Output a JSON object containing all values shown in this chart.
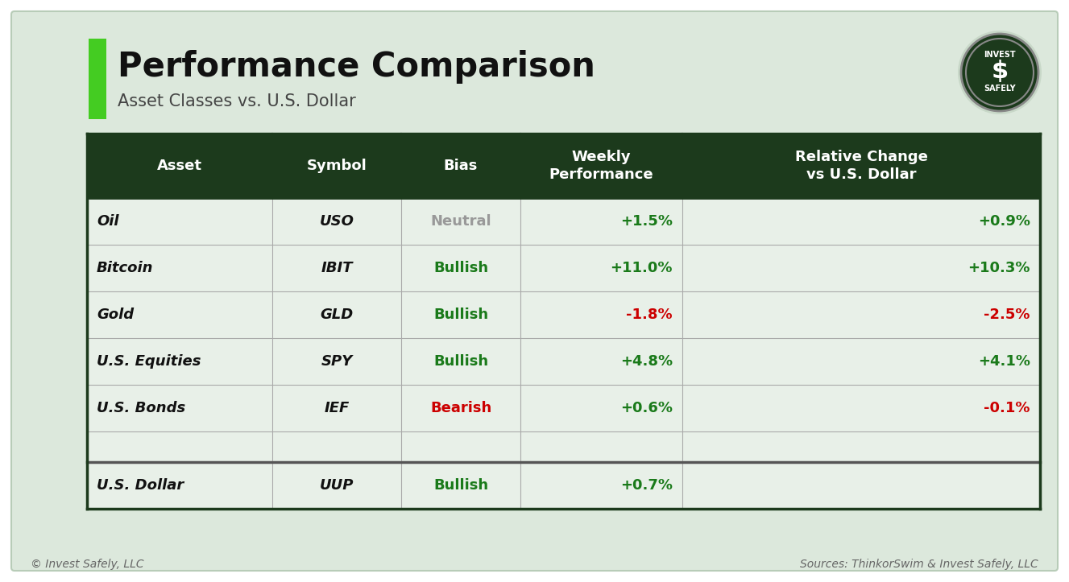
{
  "title": "Performance Comparison",
  "subtitle": "Asset Classes vs. U.S. Dollar",
  "bg_color": "#dce8dc",
  "outer_bg": "#ffffff",
  "table_header_bg": "#1c3a1c",
  "table_header_fg": "#ffffff",
  "table_row_bg": "#e8f0e8",
  "green_bar_color": "#44cc22",
  "col_headers": [
    "Asset",
    "Symbol",
    "Bias",
    "Weekly\nPerformance",
    "Relative Change\nvs U.S. Dollar"
  ],
  "rows": [
    {
      "asset": "Oil",
      "symbol": "USO",
      "bias": "Neutral",
      "bias_color": "#999999",
      "weekly": "+1.5%",
      "weekly_color": "#1a7a1a",
      "relative": "+0.9%",
      "relative_color": "#1a7a1a"
    },
    {
      "asset": "Bitcoin",
      "symbol": "IBIT",
      "bias": "Bullish",
      "bias_color": "#1a7a1a",
      "weekly": "+11.0%",
      "weekly_color": "#1a7a1a",
      "relative": "+10.3%",
      "relative_color": "#1a7a1a"
    },
    {
      "asset": "Gold",
      "symbol": "GLD",
      "bias": "Bullish",
      "bias_color": "#1a7a1a",
      "weekly": "-1.8%",
      "weekly_color": "#cc0000",
      "relative": "-2.5%",
      "relative_color": "#cc0000"
    },
    {
      "asset": "U.S. Equities",
      "symbol": "SPY",
      "bias": "Bullish",
      "bias_color": "#1a7a1a",
      "weekly": "+4.8%",
      "weekly_color": "#1a7a1a",
      "relative": "+4.1%",
      "relative_color": "#1a7a1a"
    },
    {
      "asset": "U.S. Bonds",
      "symbol": "IEF",
      "bias": "Bearish",
      "bias_color": "#cc0000",
      "weekly": "+0.6%",
      "weekly_color": "#1a7a1a",
      "relative": "-0.1%",
      "relative_color": "#cc0000"
    }
  ],
  "footer_row": {
    "asset": "U.S. Dollar",
    "symbol": "UUP",
    "bias": "Bullish",
    "bias_color": "#1a7a1a",
    "weekly": "+0.7%",
    "weekly_color": "#1a7a1a"
  },
  "footer_left": "© Invest Safely, LLC",
  "footer_right": "Sources: ThinkorSwim & Invest Safely, LLC",
  "title_fontsize": 30,
  "subtitle_fontsize": 15,
  "header_fontsize": 13,
  "cell_fontsize": 13
}
